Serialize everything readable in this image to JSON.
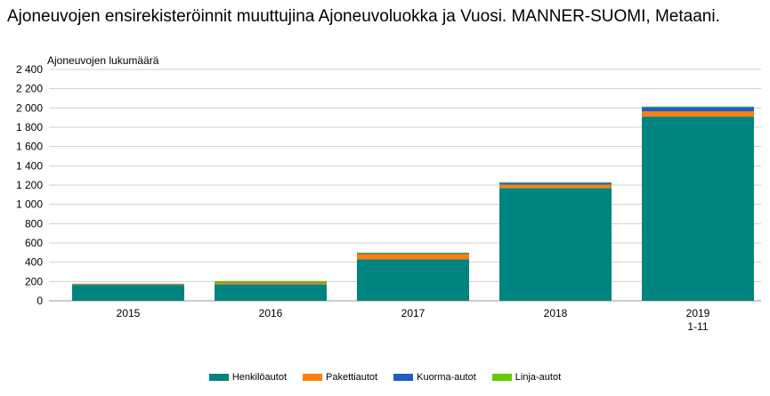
{
  "title": "Ajoneuvojen ensirekisteröinnit muuttujina Ajoneuvoluokka ja Vuosi. MANNER-SUOMI, Metaani.",
  "chart_data": {
    "type": "bar",
    "stacked": true,
    "ylabel": "Ajoneuvojen lukumäärä",
    "xlabel": "",
    "ylim": [
      0,
      2400
    ],
    "yticks": [
      0,
      200,
      400,
      600,
      800,
      1000,
      1200,
      1400,
      1600,
      1800,
      2000,
      2200,
      2400
    ],
    "ytick_labels": [
      "0",
      "200",
      "400",
      "600",
      "800",
      "1 000",
      "1 200",
      "1 400",
      "1 600",
      "1 800",
      "2 000",
      "2 200",
      "2 400"
    ],
    "grid": true,
    "legend_position": "bottom",
    "categories": [
      {
        "line1": "2015",
        "line2": ""
      },
      {
        "line1": "2016",
        "line2": ""
      },
      {
        "line1": "2017",
        "line2": ""
      },
      {
        "line1": "2018",
        "line2": ""
      },
      {
        "line1": "2019",
        "line2": "1-11"
      }
    ],
    "series": [
      {
        "name": "Henkilöautot",
        "color": "#00847f",
        "values": [
          165,
          170,
          430,
          1170,
          1910
        ]
      },
      {
        "name": "Pakettiautot",
        "color": "#ff7f0e",
        "values": [
          8,
          15,
          55,
          35,
          55
        ]
      },
      {
        "name": "Kuorma-autot",
        "color": "#1f5fbf",
        "values": [
          3,
          5,
          10,
          20,
          45
        ]
      },
      {
        "name": "Linja-autot",
        "color": "#66cc00",
        "values": [
          2,
          15,
          5,
          5,
          5
        ]
      }
    ]
  }
}
